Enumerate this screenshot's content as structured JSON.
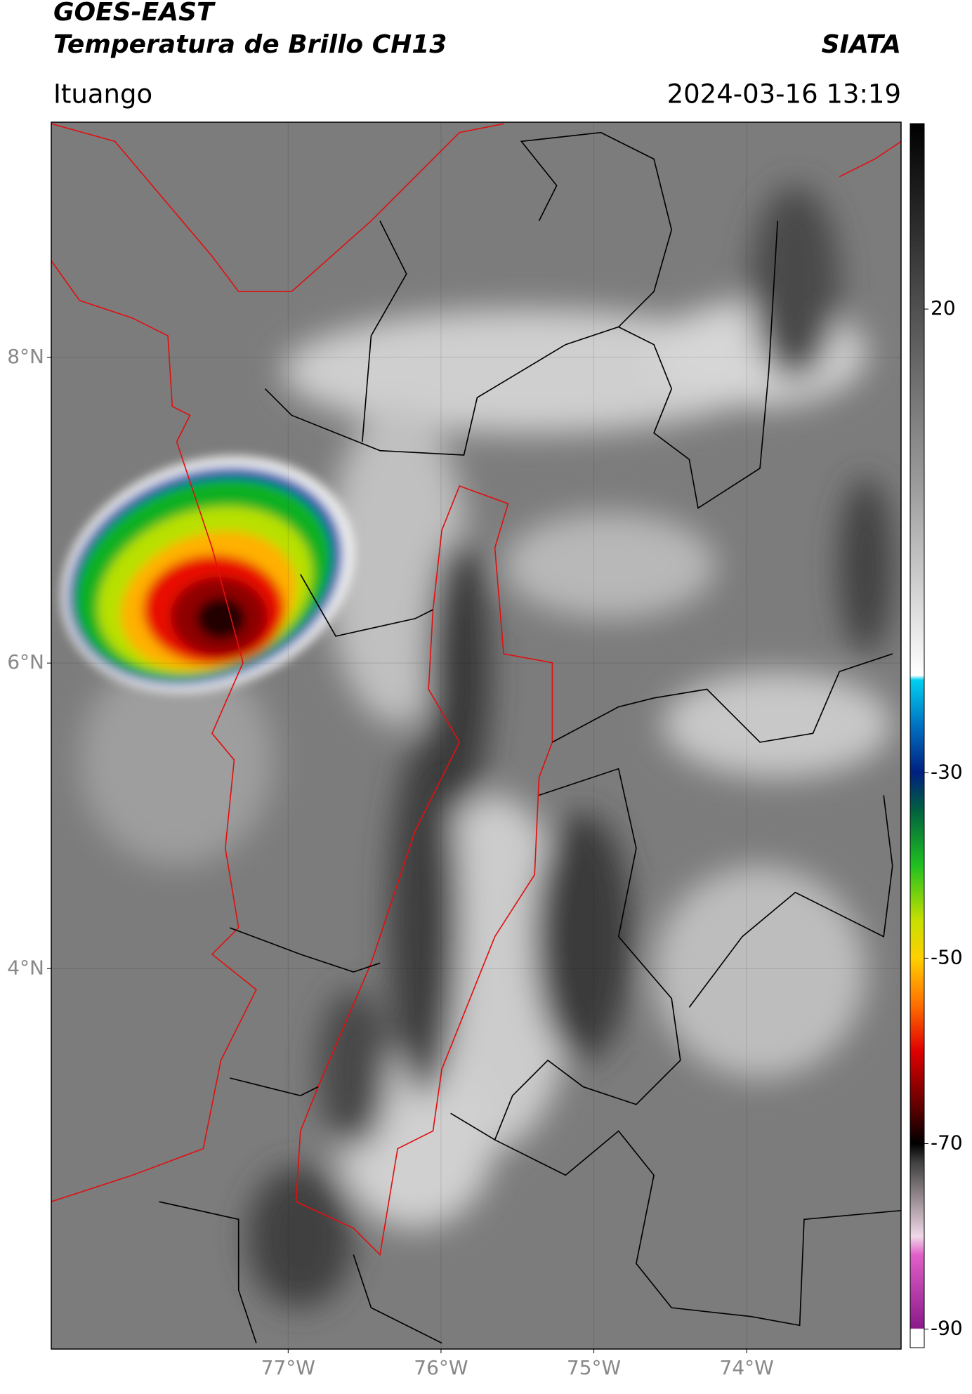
{
  "header": {
    "title_line1": "GOES-EAST",
    "title_line2": "Temperatura de Brillo CH13",
    "org": "SIATA",
    "location": "Ituango",
    "datetime": "2024-03-16 13:19"
  },
  "map": {
    "lat_lim": [
      1.51,
      9.54
    ],
    "lon_lim": [
      -78.55,
      -72.99
    ],
    "lat_ticks": [
      {
        "value": 8,
        "label": "8°N"
      },
      {
        "value": 6,
        "label": "6°N"
      },
      {
        "value": 4,
        "label": "4°N"
      }
    ],
    "lon_ticks": [
      {
        "value": -77,
        "label": "77°W"
      },
      {
        "value": -76,
        "label": "76°W"
      },
      {
        "value": -75,
        "label": "75°W"
      },
      {
        "value": -74,
        "label": "74°W"
      }
    ]
  },
  "colorbar": {
    "lim": [
      -92,
      40
    ],
    "ticks": [
      20,
      -30,
      -50,
      -70,
      -90
    ],
    "colorscale": [
      {
        "value": -92,
        "color": "#ffffff"
      },
      {
        "value": -90,
        "color": "#ffffff"
      },
      {
        "value": -89.9,
        "color": "#8a1a8a"
      },
      {
        "value": -82,
        "color": "#e060c8"
      },
      {
        "value": -80,
        "color": "#f0d8e8"
      },
      {
        "value": -77,
        "color": "#b0a0a8"
      },
      {
        "value": -72,
        "color": "#404040"
      },
      {
        "value": -70,
        "color": "#000000"
      },
      {
        "value": -66,
        "color": "#600000"
      },
      {
        "value": -60,
        "color": "#e00000"
      },
      {
        "value": -55,
        "color": "#ff7000"
      },
      {
        "value": -50,
        "color": "#ffd000"
      },
      {
        "value": -46,
        "color": "#c8e000"
      },
      {
        "value": -40,
        "color": "#20c020"
      },
      {
        "value": -34,
        "color": "#006040"
      },
      {
        "value": -30,
        "color": "#002080"
      },
      {
        "value": -25,
        "color": "#0070c0"
      },
      {
        "value": -20,
        "color": "#00d0f0"
      },
      {
        "value": -19.5,
        "color": "#ffffff"
      },
      {
        "value": 0,
        "color": "#a0a0a0"
      },
      {
        "value": 40,
        "color": "#000000"
      }
    ]
  }
}
